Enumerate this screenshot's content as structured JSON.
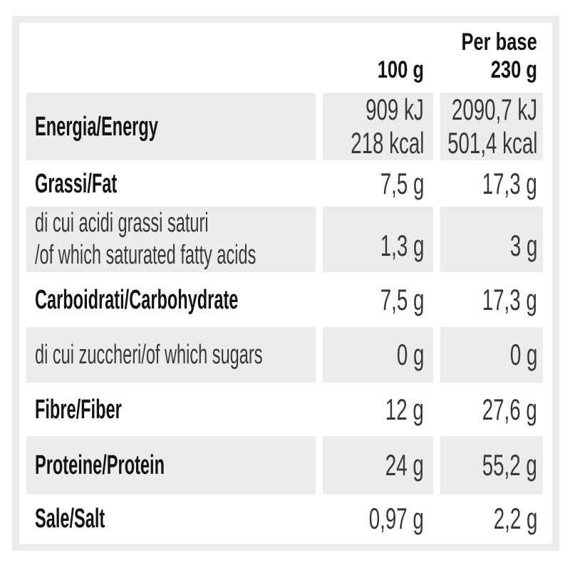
{
  "colors": {
    "page-bg": "#ffffff",
    "frame": "#ececec",
    "row-shade": "#ececec",
    "label-text": "#141414",
    "value-text": "#383838"
  },
  "table": {
    "header": {
      "col1_unit": "100 g",
      "col2_line1": "Per base",
      "col2_line2": "230 g"
    },
    "rows": [
      {
        "label": "Energia/Energy",
        "col1_line1": "909 kJ",
        "col1_line2": "218 kcal",
        "col2_line1": "2090,7 kJ",
        "col2_line2": "501,4 kcal"
      },
      {
        "label": "Grassi/Fat",
        "col1": "7,5 g",
        "col2": "17,3 g"
      },
      {
        "label_line1": "di cui acidi grassi saturi",
        "label_line2": "/of which saturated fatty acids",
        "col1": "1,3 g",
        "col2": "3 g"
      },
      {
        "label": "Carboidrati/Carbohydrate",
        "col1": "7,5 g",
        "col2": "17,3 g"
      },
      {
        "label": "di cui zuccheri/of which sugars",
        "col1": "0 g",
        "col2": "0 g"
      },
      {
        "label": "Fibre/Fiber",
        "col1": "12 g",
        "col2": "27,6 g"
      },
      {
        "label": "Proteine/Protein",
        "col1": "24 g",
        "col2": "55,2 g"
      },
      {
        "label": "Sale/Salt",
        "col1": "0,97 g",
        "col2": "2,2 g"
      }
    ]
  }
}
